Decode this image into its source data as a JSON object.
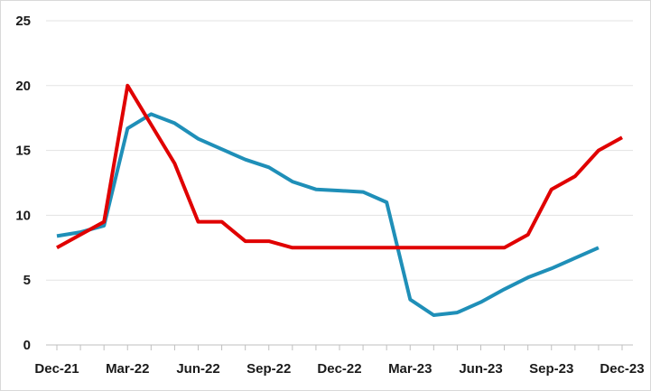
{
  "chart_data": {
    "type": "line",
    "title": "",
    "xlabel": "",
    "ylabel": "",
    "ylim": [
      0,
      25
    ],
    "y_ticks": [
      "0",
      "5",
      "10",
      "15",
      "20",
      "25"
    ],
    "x_tick_labels": [
      "Dec-21",
      "Mar-22",
      "Jun-22",
      "Sep-22",
      "Dec-22",
      "Mar-23",
      "Jun-23",
      "Sep-23",
      "Dec-23"
    ],
    "x": [
      "Dec-21",
      "Jan-22",
      "Feb-22",
      "Mar-22",
      "Apr-22",
      "May-22",
      "Jun-22",
      "Jul-22",
      "Aug-22",
      "Sep-22",
      "Oct-22",
      "Nov-22",
      "Dec-22",
      "Jan-23",
      "Feb-23",
      "Mar-23",
      "Apr-23",
      "May-23",
      "Jun-23",
      "Jul-23",
      "Aug-23",
      "Sep-23",
      "Oct-23",
      "Nov-23",
      "Dec-23"
    ],
    "grid": true,
    "legend": "none",
    "series": [
      {
        "color": "#1f8fb8",
        "values": [
          8.4,
          8.7,
          9.2,
          16.7,
          17.8,
          17.1,
          15.9,
          15.1,
          14.3,
          13.7,
          12.6,
          12.0,
          11.9,
          11.8,
          11.0,
          3.5,
          2.3,
          2.5,
          3.3,
          4.3,
          5.2,
          5.9,
          6.7,
          7.5,
          null
        ]
      },
      {
        "color": "#e00000",
        "values": [
          7.5,
          8.5,
          9.5,
          20.0,
          17.0,
          14.0,
          9.5,
          9.5,
          8.0,
          8.0,
          7.5,
          7.5,
          7.5,
          7.5,
          7.5,
          7.5,
          7.5,
          7.5,
          7.5,
          7.5,
          8.5,
          12.0,
          13.0,
          15.0,
          16.0
        ]
      }
    ]
  }
}
